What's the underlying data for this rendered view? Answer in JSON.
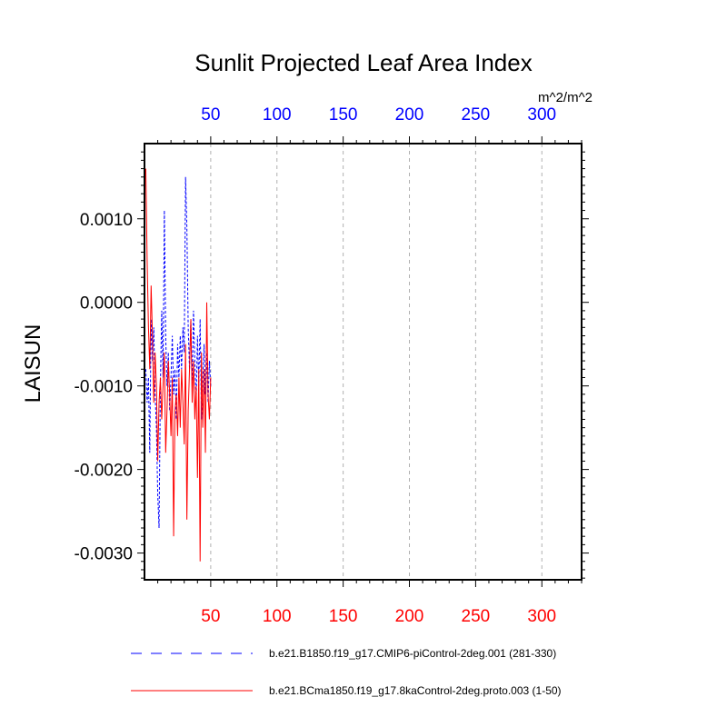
{
  "chart_data": {
    "type": "line",
    "title": "Sunlit Projected Leaf Area Index",
    "units": "m^2/m^2",
    "ylabel": "LAISUN",
    "xlim": [
      0,
      330
    ],
    "ylim": [
      -0.00332,
      0.0019
    ],
    "bottom_axis": {
      "ticks": [
        50,
        100,
        150,
        200,
        250,
        300
      ],
      "tick_labels": [
        "50",
        "100",
        "150",
        "200",
        "250",
        "300"
      ],
      "color": "#ff0000"
    },
    "top_axis": {
      "ticks": [
        50,
        100,
        150,
        200,
        250,
        300
      ],
      "tick_labels": [
        "50",
        "100",
        "150",
        "200",
        "250",
        "300"
      ],
      "color": "#0000ff"
    },
    "y_ticks": [
      0.001,
      0.0,
      -0.001,
      -0.002,
      -0.003
    ],
    "y_tick_labels": [
      "0.0010",
      "0.0000",
      "-0.0010",
      "-0.0020",
      "-0.0030"
    ],
    "grid": "vertical dashed at major x ticks",
    "series": [
      {
        "name": "b.e21.B1850.f19_g17.CMIP6-piControl-2deg.001 (281-330)",
        "color": "#0000ff",
        "style": "dashed",
        "x": [
          1,
          2,
          3,
          4,
          5,
          6,
          7,
          8,
          9,
          10,
          11,
          12,
          13,
          14,
          15,
          16,
          17,
          18,
          19,
          20,
          21,
          22,
          23,
          24,
          25,
          26,
          27,
          28,
          29,
          30,
          31,
          32,
          33,
          34,
          35,
          36,
          37,
          38,
          39,
          40,
          41,
          42,
          43,
          44,
          45,
          46,
          47,
          48,
          49,
          50
        ],
        "y": [
          -0.0008,
          -0.0012,
          -0.0009,
          -0.0018,
          -0.0002,
          -0.0007,
          -0.0003,
          -0.0011,
          -0.0015,
          -0.0023,
          -0.0027,
          -0.001,
          -0.0001,
          -0.0009,
          0.0011,
          -0.0004,
          -0.001,
          -0.0006,
          -0.0013,
          -0.0009,
          -0.0004,
          -0.0011,
          -0.0008,
          -0.0014,
          -0.0005,
          -0.0009,
          -0.0004,
          -0.0008,
          -0.0003,
          -0.0006,
          0.0015,
          0.0009,
          -0.0003,
          -0.0008,
          -0.0002,
          -0.001,
          -0.0001,
          -0.0007,
          -0.0012,
          -0.0004,
          -0.001,
          -0.0002,
          -0.0014,
          -0.0009,
          -0.0005,
          -0.0011,
          -0.0006,
          -0.0012,
          -0.0007,
          -0.001
        ]
      },
      {
        "name": "b.e21.BCma1850.f19_g17.8kaControl-2deg.proto.003 (1-50)",
        "color": "#ff0000",
        "style": "solid",
        "x": [
          1,
          2,
          3,
          4,
          5,
          6,
          7,
          8,
          9,
          10,
          11,
          12,
          13,
          14,
          15,
          16,
          17,
          18,
          19,
          20,
          21,
          22,
          23,
          24,
          25,
          26,
          27,
          28,
          29,
          30,
          31,
          32,
          33,
          34,
          35,
          36,
          37,
          38,
          39,
          40,
          41,
          42,
          43,
          44,
          45,
          46,
          47,
          48,
          49,
          50
        ],
        "y": [
          0.0016,
          0.0005,
          -0.0003,
          -0.0008,
          0.0002,
          -0.0004,
          -0.0012,
          -0.0006,
          -0.001,
          -0.0019,
          -0.0012,
          -0.0009,
          -0.0014,
          -0.001,
          -0.0006,
          -0.0018,
          -0.0013,
          -0.0007,
          -0.0011,
          -0.0016,
          -0.0009,
          -0.0028,
          -0.0013,
          -0.0011,
          -0.0016,
          -0.0009,
          -0.0015,
          -0.0008,
          -0.0012,
          -0.0017,
          -0.0005,
          -0.0026,
          -0.0013,
          -0.0008,
          -0.0002,
          -0.0012,
          -0.0007,
          -0.0014,
          -0.001,
          -0.0021,
          -0.0008,
          -0.0031,
          -0.0006,
          -0.0015,
          -0.0008,
          -0.0018,
          0.0,
          -0.0011,
          -0.0014,
          -0.0009
        ]
      }
    ]
  }
}
